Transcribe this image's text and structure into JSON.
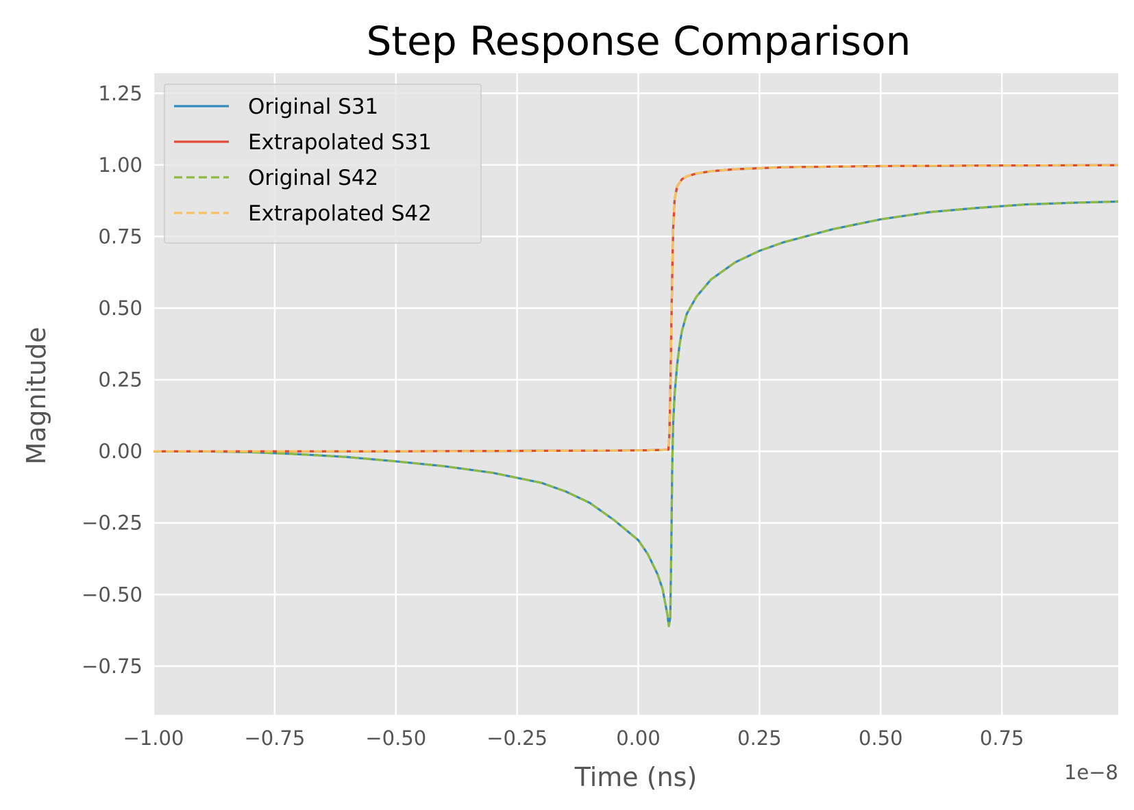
{
  "chart_data": {
    "type": "line",
    "title": "Step Response Comparison",
    "xlabel": "Time (ns)",
    "ylabel": "Magnitude",
    "x_offset_label": "1e−8",
    "xlim": [
      -1.0,
      0.99
    ],
    "ylim": [
      -0.92,
      1.32
    ],
    "xticks": [
      -1.0,
      -0.75,
      -0.5,
      -0.25,
      0.0,
      0.25,
      0.5,
      0.75
    ],
    "xtick_labels": [
      "−1.00",
      "−0.75",
      "−0.50",
      "−0.25",
      "0.00",
      "0.25",
      "0.50",
      "0.75"
    ],
    "yticks": [
      -0.75,
      -0.5,
      -0.25,
      0.0,
      0.25,
      0.5,
      0.75,
      1.0,
      1.25
    ],
    "ytick_labels": [
      "−0.75",
      "−0.50",
      "−0.25",
      "0.00",
      "0.25",
      "0.50",
      "0.75",
      "1.00",
      "1.25"
    ],
    "grid": true,
    "legend_position": "top-left",
    "background": "#e5e5e5",
    "series": [
      {
        "name": "Original S31",
        "color": "#348abd",
        "style": "solid",
        "x": [
          -1.0,
          -0.5,
          0.0,
          0.05,
          0.062,
          0.064,
          0.066,
          0.068,
          0.07,
          0.072,
          0.075,
          0.08,
          0.09,
          0.1,
          0.12,
          0.15,
          0.2,
          0.3,
          0.5,
          0.75,
          0.99
        ],
        "y": [
          0.0,
          0.0,
          0.003,
          0.005,
          0.006,
          0.05,
          0.2,
          0.42,
          0.62,
          0.78,
          0.88,
          0.925,
          0.95,
          0.96,
          0.97,
          0.978,
          0.985,
          0.992,
          0.996,
          0.998,
          0.999
        ]
      },
      {
        "name": "Extrapolated S31",
        "color": "#e24a33",
        "style": "solid",
        "x": [
          -1.0,
          -0.5,
          0.0,
          0.05,
          0.062,
          0.064,
          0.066,
          0.068,
          0.07,
          0.072,
          0.075,
          0.08,
          0.09,
          0.1,
          0.12,
          0.15,
          0.2,
          0.3,
          0.5,
          0.75,
          0.99
        ],
        "y": [
          0.0,
          0.0,
          0.003,
          0.005,
          0.006,
          0.05,
          0.2,
          0.42,
          0.62,
          0.78,
          0.88,
          0.925,
          0.95,
          0.96,
          0.97,
          0.978,
          0.985,
          0.992,
          0.996,
          0.998,
          0.999
        ]
      },
      {
        "name": "Original S42",
        "color": "#8eba42",
        "style": "dashed",
        "x": [
          -1.0,
          -0.9,
          -0.8,
          -0.7,
          -0.6,
          -0.5,
          -0.4,
          -0.3,
          -0.2,
          -0.15,
          -0.1,
          -0.05,
          0.0,
          0.02,
          0.04,
          0.05,
          0.06,
          0.063,
          0.066,
          0.068,
          0.07,
          0.072,
          0.075,
          0.08,
          0.085,
          0.09,
          0.1,
          0.12,
          0.15,
          0.2,
          0.25,
          0.3,
          0.4,
          0.5,
          0.6,
          0.7,
          0.8,
          0.9,
          0.99
        ],
        "y": [
          0.0,
          0.0,
          -0.003,
          -0.01,
          -0.02,
          -0.035,
          -0.052,
          -0.075,
          -0.11,
          -0.14,
          -0.18,
          -0.24,
          -0.31,
          -0.36,
          -0.43,
          -0.48,
          -0.57,
          -0.61,
          -0.58,
          -0.35,
          -0.05,
          0.1,
          0.2,
          0.3,
          0.37,
          0.42,
          0.48,
          0.54,
          0.6,
          0.66,
          0.7,
          0.73,
          0.775,
          0.81,
          0.835,
          0.85,
          0.862,
          0.868,
          0.872
        ]
      },
      {
        "name": "Extrapolated S42",
        "color": "#fbc15e",
        "style": "dashed",
        "x": [
          -1.0,
          -0.5,
          0.0,
          0.05,
          0.062,
          0.064,
          0.066,
          0.068,
          0.07,
          0.072,
          0.075,
          0.08,
          0.09,
          0.1,
          0.12,
          0.15,
          0.2,
          0.3,
          0.5,
          0.75,
          0.99
        ],
        "y": [
          0.0,
          0.0,
          0.003,
          0.005,
          0.006,
          0.05,
          0.2,
          0.42,
          0.62,
          0.78,
          0.88,
          0.925,
          0.95,
          0.96,
          0.97,
          0.978,
          0.985,
          0.992,
          0.996,
          0.998,
          0.999
        ]
      },
      {
        "name": "",
        "color": "#348abd",
        "style": "solid",
        "underlay": true,
        "x": [
          -1.0,
          -0.9,
          -0.8,
          -0.7,
          -0.6,
          -0.5,
          -0.4,
          -0.3,
          -0.2,
          -0.15,
          -0.1,
          -0.05,
          0.0,
          0.02,
          0.04,
          0.05,
          0.06,
          0.063,
          0.066,
          0.068,
          0.07,
          0.072,
          0.075,
          0.08,
          0.085,
          0.09,
          0.1,
          0.12,
          0.15,
          0.2,
          0.25,
          0.3,
          0.4,
          0.5,
          0.6,
          0.7,
          0.8,
          0.9,
          0.99
        ],
        "y": [
          0.0,
          0.0,
          -0.003,
          -0.01,
          -0.02,
          -0.035,
          -0.052,
          -0.075,
          -0.11,
          -0.14,
          -0.18,
          -0.24,
          -0.31,
          -0.36,
          -0.43,
          -0.48,
          -0.57,
          -0.61,
          -0.58,
          -0.35,
          -0.05,
          0.1,
          0.2,
          0.3,
          0.37,
          0.42,
          0.48,
          0.54,
          0.6,
          0.66,
          0.7,
          0.73,
          0.775,
          0.81,
          0.835,
          0.85,
          0.862,
          0.868,
          0.872
        ]
      }
    ]
  }
}
